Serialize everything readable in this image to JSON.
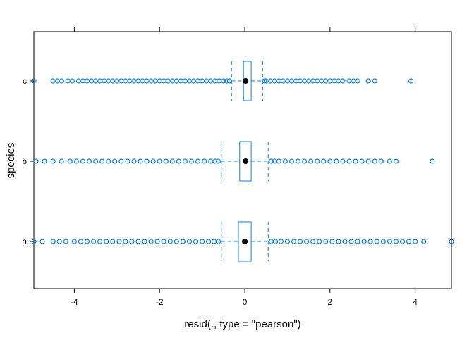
{
  "chart_data": {
    "type": "boxplot",
    "xlabel": "resid(., type = \"pearson\")",
    "ylabel": "species",
    "xlim": [
      -4.95,
      4.85
    ],
    "x_ticks": [
      {
        "value": -4,
        "label": "-4"
      },
      {
        "value": -2,
        "label": "-2"
      },
      {
        "value": 0,
        "label": "0"
      },
      {
        "value": 2,
        "label": "2"
      },
      {
        "value": 4,
        "label": "4"
      }
    ],
    "top_ticks": [
      -4,
      -2,
      0,
      2,
      4
    ],
    "categories": [
      "c",
      "b",
      "a"
    ],
    "grid": false,
    "colors": {
      "box": "#0080ff",
      "median_dot": "#000000",
      "outlier": "#0080ff"
    },
    "groups": [
      {
        "name": "c",
        "whisker_low": -0.31,
        "q1": -0.03,
        "median": 0.02,
        "q3": 0.15,
        "whisker_high": 0.42,
        "outliers": [
          -4.95,
          -4.5,
          -4.4,
          -4.3,
          -4.15,
          -4.05,
          -3.9,
          -3.8,
          -3.7,
          -3.6,
          -3.5,
          -3.4,
          -3.3,
          -3.2,
          -3.1,
          -3.0,
          -2.9,
          -2.8,
          -2.7,
          -2.6,
          -2.5,
          -2.4,
          -2.3,
          -2.2,
          -2.1,
          -2.0,
          -1.9,
          -1.8,
          -1.7,
          -1.6,
          -1.5,
          -1.4,
          -1.3,
          -1.2,
          -1.1,
          -1.0,
          -0.9,
          -0.8,
          -0.7,
          -0.6,
          -0.5,
          -0.42,
          -0.36,
          0.46,
          0.5,
          0.6,
          0.7,
          0.8,
          0.9,
          1.0,
          1.1,
          1.2,
          1.3,
          1.4,
          1.5,
          1.6,
          1.7,
          1.8,
          1.9,
          2.0,
          2.1,
          2.2,
          2.3,
          2.45,
          2.55,
          2.65,
          2.9,
          3.05,
          3.9
        ]
      },
      {
        "name": "b",
        "whisker_low": -0.55,
        "q1": -0.12,
        "median": 0.02,
        "q3": 0.15,
        "whisker_high": 0.55,
        "outliers": [
          -4.9,
          -4.7,
          -4.5,
          -4.3,
          -4.1,
          -3.95,
          -3.8,
          -3.65,
          -3.5,
          -3.35,
          -3.2,
          -3.05,
          -2.9,
          -2.75,
          -2.6,
          -2.45,
          -2.3,
          -2.15,
          -2.0,
          -1.85,
          -1.7,
          -1.55,
          -1.4,
          -1.25,
          -1.1,
          -0.95,
          -0.8,
          -0.7,
          -0.62,
          0.62,
          0.7,
          0.8,
          0.95,
          1.1,
          1.25,
          1.4,
          1.55,
          1.7,
          1.85,
          2.0,
          2.15,
          2.3,
          2.45,
          2.6,
          2.75,
          2.9,
          3.05,
          3.2,
          3.4,
          3.55,
          4.4
        ]
      },
      {
        "name": "a",
        "whisker_low": -0.55,
        "q1": -0.15,
        "median": 0.0,
        "q3": 0.15,
        "whisker_high": 0.55,
        "outliers": [
          -4.95,
          -4.75,
          -4.5,
          -4.35,
          -4.2,
          -4.0,
          -3.85,
          -3.7,
          -3.55,
          -3.4,
          -3.25,
          -3.1,
          -2.95,
          -2.8,
          -2.65,
          -2.5,
          -2.35,
          -2.2,
          -2.05,
          -1.9,
          -1.75,
          -1.6,
          -1.45,
          -1.3,
          -1.15,
          -1.0,
          -0.85,
          -0.72,
          -0.62,
          0.62,
          0.72,
          0.85,
          1.0,
          1.15,
          1.3,
          1.45,
          1.6,
          1.75,
          1.9,
          2.05,
          2.2,
          2.35,
          2.5,
          2.65,
          2.8,
          2.95,
          3.1,
          3.25,
          3.4,
          3.55,
          3.7,
          3.85,
          4.0,
          4.2,
          4.85
        ]
      }
    ]
  }
}
